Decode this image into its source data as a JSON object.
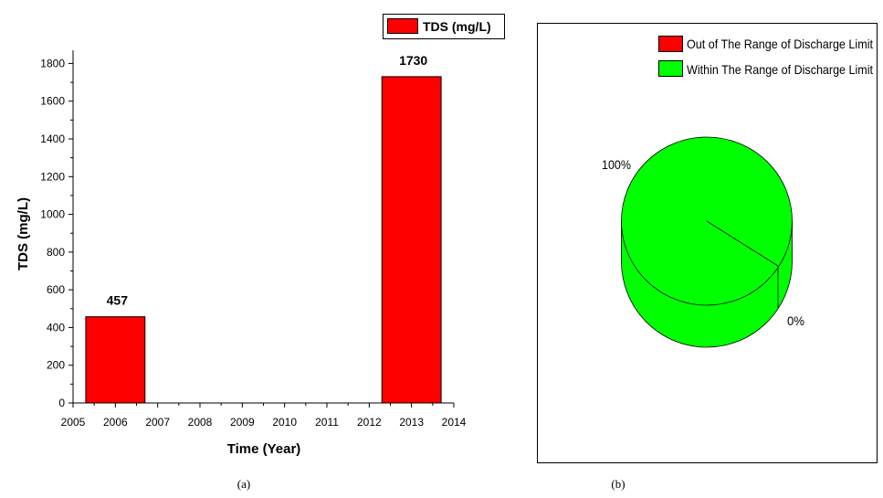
{
  "chart_data": [
    {
      "type": "bar",
      "xlabel": "Time (Year)",
      "ylabel": "TDS (mg/L)",
      "xlim": [
        2005,
        2014
      ],
      "ylim": [
        0,
        1870
      ],
      "x_ticks": [
        2005,
        2006,
        2007,
        2008,
        2009,
        2010,
        2011,
        2012,
        2013,
        2014
      ],
      "y_ticks": [
        0,
        200,
        400,
        600,
        800,
        1000,
        1200,
        1400,
        1600,
        1800
      ],
      "categories": [
        2006,
        2013
      ],
      "bar_width_years": 1.4,
      "series": [
        {
          "name": "TDS (mg/L)",
          "values": [
            457,
            1730
          ],
          "color": "#ff0000"
        }
      ],
      "data_labels": [
        "457",
        "1730"
      ],
      "legend_position": "top-right",
      "caption": "(a)"
    },
    {
      "type": "pie",
      "style": "3d",
      "slices": [
        {
          "name": "Out of The Range of Discharge Limit",
          "value": 0,
          "label": "0%",
          "color": "#ff0000"
        },
        {
          "name": "Within The Range of Discharge Limit",
          "value": 100,
          "label": "100%",
          "color": "#00ff00"
        }
      ],
      "legend_position": "top-right",
      "caption": "(b)"
    }
  ]
}
